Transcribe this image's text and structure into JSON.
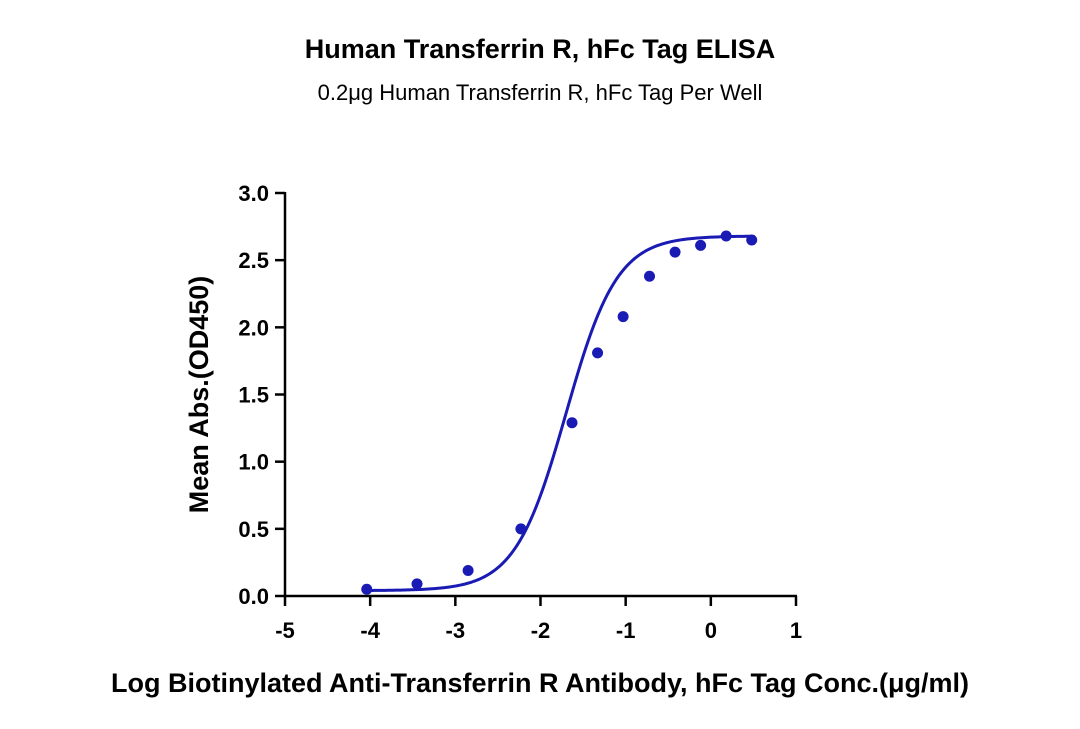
{
  "chart_data": {
    "type": "scatter",
    "title": "Human Transferrin R, hFc Tag ELISA",
    "subtitle": "0.2μg Human Transferrin R, hFc Tag Per Well",
    "xlabel": "Log Biotinylated Anti-Transferrin R Antibody, hFc Tag Conc.(μg/ml)",
    "ylabel": "Mean Abs.(OD450)",
    "xlim": [
      -5,
      1
    ],
    "ylim": [
      0,
      3
    ],
    "x_ticks": [
      -5,
      -4,
      -3,
      -2,
      -1,
      0,
      1
    ],
    "x_tick_labels": [
      "-5",
      "-4",
      "-3",
      "-2",
      "-1",
      "0",
      "1"
    ],
    "y_ticks": [
      0,
      0.5,
      1,
      1.5,
      2,
      2.5,
      3
    ],
    "y_tick_labels": [
      "0.0",
      "0.5",
      "1.0",
      "1.5",
      "2.0",
      "2.5",
      "3.0"
    ],
    "grid": false,
    "color": "#1a1ab4",
    "series": [
      {
        "x": [
          -4.04,
          -3.45,
          -2.85,
          -2.23,
          -1.63,
          -1.33,
          -1.03,
          -0.72,
          -0.42,
          -0.12,
          0.18,
          0.48
        ],
        "y": [
          0.05,
          0.09,
          0.19,
          0.5,
          1.29,
          1.81,
          2.08,
          2.38,
          2.56,
          2.61,
          2.68,
          2.65
        ],
        "fit": {
          "model": "4PL",
          "bottom": 0.04,
          "top": 2.68,
          "logEC50": -1.7,
          "hill": 1.45,
          "range": [
            -4.04,
            0.48
          ]
        }
      }
    ]
  }
}
